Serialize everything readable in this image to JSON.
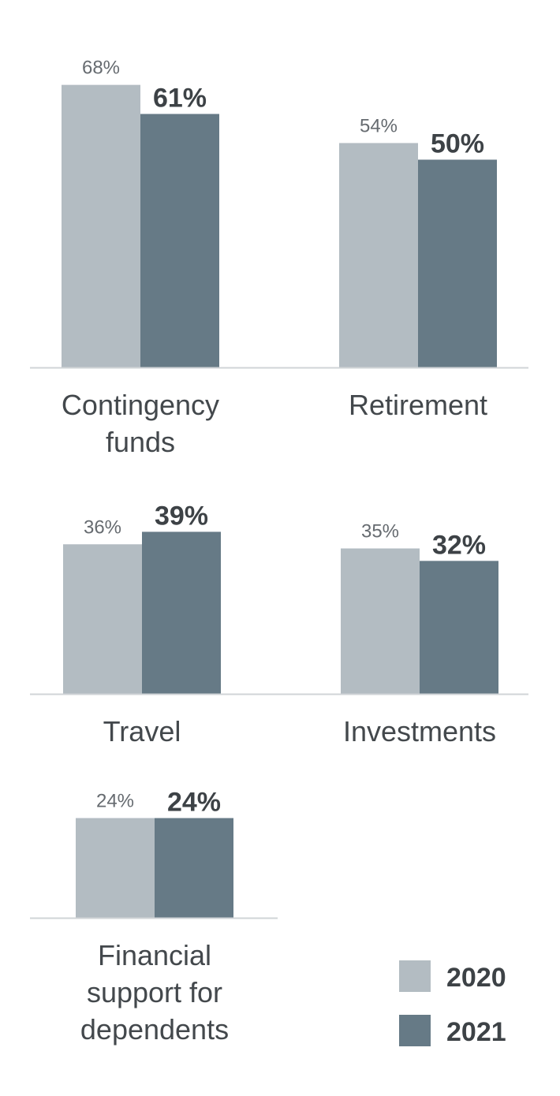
{
  "chart_data": {
    "type": "bar",
    "series": [
      {
        "name": "2020",
        "color": "#b3bcc2"
      },
      {
        "name": "2021",
        "color": "#667a86"
      }
    ],
    "panels": [
      {
        "category": [
          "Contingency",
          "funds"
        ],
        "values": [
          68,
          61
        ],
        "labels": [
          "68%",
          "61%"
        ]
      },
      {
        "category": [
          "Retirement"
        ],
        "values": [
          54,
          50
        ],
        "labels": [
          "54%",
          "50%"
        ]
      },
      {
        "category": [
          "Travel"
        ],
        "values": [
          36,
          39
        ],
        "labels": [
          "36%",
          "39%"
        ]
      },
      {
        "category": [
          "Investments"
        ],
        "values": [
          35,
          32
        ],
        "labels": [
          "35%",
          "32%"
        ]
      },
      {
        "category": [
          "Financial",
          "support for",
          "dependents"
        ],
        "values": [
          24,
          24
        ],
        "labels": [
          "24%",
          "24%"
        ]
      }
    ],
    "axis_color": "#d0d4d7",
    "legend_position": "bottom-right"
  }
}
